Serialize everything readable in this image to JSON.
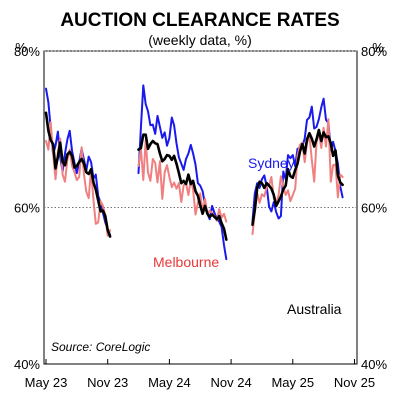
{
  "chart_data": {
    "type": "line",
    "title": "AUCTION CLEARANCE RATES",
    "subtitle": "(weekly data, %)",
    "unit_left": "%",
    "unit_right": "%",
    "source": "Source: CoreLogic",
    "ylim": [
      40,
      80
    ],
    "y_ticks": [
      {
        "value": 40,
        "label": "40%"
      },
      {
        "value": 60,
        "label": "60%"
      },
      {
        "value": 80,
        "label": "80%"
      }
    ],
    "x_ticks": [
      "May 23",
      "Nov 23",
      "May 24",
      "Nov 24",
      "May 25",
      "Nov 25"
    ],
    "gridlines": [
      60,
      80
    ],
    "colors": {
      "Sydney": "#1a1aee",
      "Melbourne": "#f08080",
      "Australia": "#000000"
    },
    "series": [
      {
        "name": "Sydney",
        "segments": [
          {
            "start": 0,
            "values": [
              75.2,
              73.4,
              70.1,
              66.8,
              67.9,
              69.7,
              66.4,
              64.6,
              66.9,
              68.7,
              69.8,
              67.2,
              65.7,
              64.4,
              65.8,
              67.5,
              66.1,
              64.7,
              66.5,
              65.8,
              63.7,
              64.2,
              61.5,
              60.6,
              59.3,
              58.1,
              57.2,
              56.5
            ]
          },
          {
            "start": 39,
            "values": [
              64.4,
              70.2,
              75.6,
              73.2,
              72.3,
              70.5,
              70.6,
              69.4,
              71.7,
              70.3,
              68.9,
              69.6,
              67.9,
              68.9,
              71.5,
              70.5,
              68.2,
              66.4,
              65.6,
              64.8,
              66.2,
              66.9,
              68.0,
              66.9,
              65.5,
              63.1,
              62.8,
              62.1,
              60.4,
              59.2,
              58.5,
              60.2,
              59.3,
              58.6,
              58.2,
              57.5,
              55.2,
              53.4
            ]
          },
          {
            "start": 87,
            "values": [
              58.2,
              61.8,
              63.1,
              62.5,
              63.6,
              64.1,
              62.7,
              60.1,
              59.5,
              60.7,
              59.4,
              58.6,
              58.9,
              64.6,
              63.6,
              66.7,
              66.3,
              66.7,
              65.3,
              67.5,
              67.6,
              67.8,
              68.8,
              71.2,
              71.5,
              72.9,
              70.1,
              70.3,
              71.3,
              72.8,
              73.9,
              71.2,
              70.8,
              67.3,
              68.4,
              67.2,
              65.6,
              62.7,
              61.3
            ]
          }
        ]
      },
      {
        "name": "Melbourne",
        "segments": [
          {
            "start": 0,
            "values": [
              68.5,
              67.4,
              70.9,
              66.9,
              63.6,
              67.1,
              68.8,
              64.2,
              63.3,
              66.1,
              67.4,
              65.3,
              64.5,
              63.5,
              63.9,
              67.7,
              64.2,
              62.0,
              61.2,
              64.9,
              60.9,
              57.9,
              58.1,
              60.8,
              60.2,
              58.9,
              56.4,
              57.1
            ]
          },
          {
            "start": 39,
            "values": [
              65.3,
              67.5,
              63.5,
              68.6,
              64.5,
              63.4,
              66.2,
              65.7,
              63.2,
              65.9,
              61.1,
              64.5,
              65.4,
              63.9,
              62.6,
              63.2,
              62.4,
              63.1,
              60.7,
              62.8,
              63.2,
              61.6,
              63.5,
              62.3,
              59.1,
              60.6,
              61.8,
              59.5,
              61.1,
              59.2,
              59.6,
              59.3,
              58.9,
              58.3,
              59.8,
              58.7,
              59.2,
              58.2
            ]
          },
          {
            "start": 87,
            "values": [
              56.6,
              59.4,
              61.8,
              60.6,
              61.7,
              61.4,
              62.6,
              62.8,
              63.9,
              61.2,
              60.5,
              61.6,
              64.0,
              62.7,
              61.6,
              62.2,
              60.8,
              61.6,
              62.4,
              66.6,
              68.0,
              68.3,
              65.8,
              68.2,
              69.2,
              66.1,
              63.3,
              68.3,
              69.6,
              67.6,
              70.2,
              67.8,
              71.3,
              63.3,
              65.4,
              65.5,
              61.3,
              64.2,
              63.9
            ]
          }
        ]
      },
      {
        "name": "Australia",
        "segments": [
          {
            "start": 0,
            "values": [
              72.1,
              69.8,
              68.6,
              68.1,
              65.0,
              66.5,
              68.3,
              65.8,
              65.4,
              66.8,
              67.1,
              66.6,
              65.1,
              65.3,
              65.8,
              66.2,
              65.6,
              64.5,
              64.3,
              64.9,
              63.2,
              62.3,
              60.9,
              59.5,
              59.6,
              58.9,
              57.1,
              56.3
            ]
          },
          {
            "start": 39,
            "values": [
              67.4,
              67.6,
              69.3,
              69.3,
              67.5,
              68.1,
              68.5,
              68.2,
              68.1,
              66.9,
              65.9,
              66.2,
              66.7,
              66.6,
              66.1,
              66.6,
              65.6,
              64.4,
              63.1,
              63.4,
              63.0,
              64.2,
              63.0,
              63.4,
              62.1,
              61.5,
              60.3,
              59.2,
              60.2,
              59.2,
              58.8,
              59.1,
              58.8,
              58.5,
              58.9,
              58.0,
              57.3,
              55.9
            ]
          },
          {
            "start": 87,
            "values": [
              57.8,
              59.7,
              62.5,
              63.3,
              63.1,
              62.5,
              63.1,
              62.8,
              62.4,
              61.6,
              60.2,
              60.8,
              61.4,
              62.3,
              62.8,
              64.9,
              64.0,
              63.8,
              64.8,
              65.6,
              67.1,
              68.1,
              66.9,
              68.7,
              69.5,
              68.8,
              67.8,
              68.7,
              69.9,
              68.5,
              69.6,
              69.0,
              69.1,
              68.2,
              66.6,
              67.3,
              64.1,
              63.2,
              62.9
            ]
          }
        ]
      }
    ],
    "series_labels": [
      "Sydney",
      "Melbourne",
      "Australia"
    ]
  }
}
